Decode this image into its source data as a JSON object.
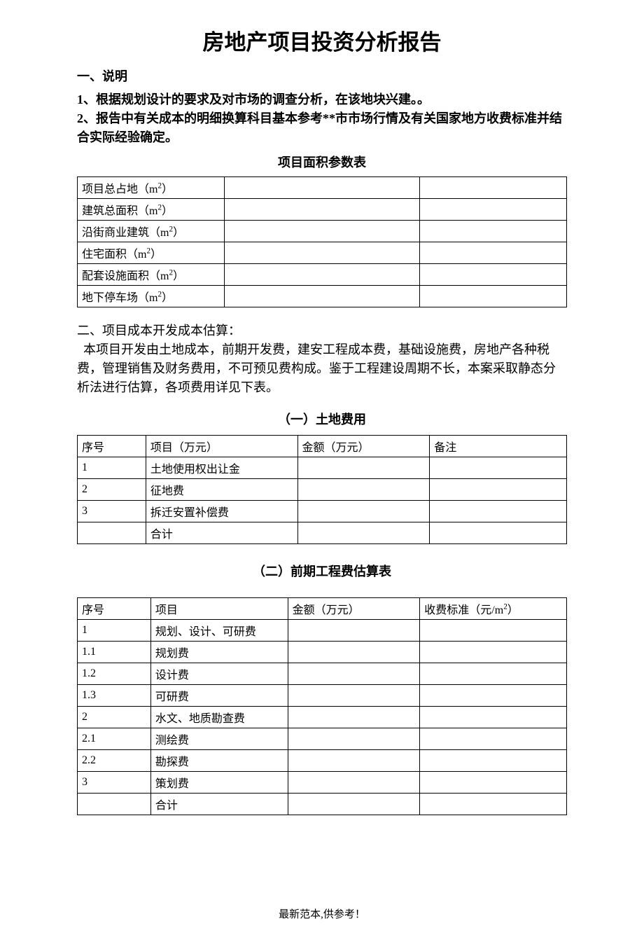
{
  "colors": {
    "text": "#000000",
    "background": "#ffffff",
    "border": "#000000"
  },
  "typography": {
    "title_fontsize": 31,
    "heading_fontsize": 18,
    "body_fontsize": 18,
    "table_fontsize": 16,
    "footer_fontsize": 15,
    "font_family": "SimSun"
  },
  "title": "房地产项目投资分析报告",
  "section1": {
    "heading": "一、说明",
    "para1": "1、根据规划设计的要求及对市场的调查分析，在该地块兴建。。",
    "para2": "2、报告中有关成本的明细换算科目基本参考**市市场行情及有关国家地方收费标准并结合实际经验确定。"
  },
  "table1": {
    "type": "table",
    "title": "项目面积参数表",
    "columns_count": 3,
    "col_widths_pct": [
      30,
      40,
      30
    ],
    "rows": [
      {
        "c1": "项目总占地（m²）",
        "c2": "",
        "c3": ""
      },
      {
        "c1": "建筑总面积（m²）",
        "c2": "",
        "c3": ""
      },
      {
        "c1": "沿街商业建筑（m²）",
        "c2": "",
        "c3": ""
      },
      {
        "c1": "住宅面积（m²）",
        "c2": "",
        "c3": ""
      },
      {
        "c1": "配套设施面积（m²）",
        "c2": "",
        "c3": ""
      },
      {
        "c1": "地下停车场（m²）",
        "c2": "",
        "c3": ""
      }
    ]
  },
  "section2": {
    "heading": "二、项目成本开发成本估算：",
    "para1": "  本项目开发由土地成本，前期开发费，建安工程成本费，基础设施费，房地产各种税费，管理销售及财务费用，不可预见费构成。鉴于工程建设周期不长，本案采取静态分析法进行估算，各项费用详见下表。"
  },
  "table2": {
    "type": "table",
    "title": "（一）土地费用",
    "col_widths_pct": [
      14,
      31,
      27,
      28
    ],
    "header": {
      "h1": "序号",
      "h2": "项目（万元）",
      "h3": "金额（万元）",
      "h4": "备注"
    },
    "rows": [
      {
        "c1": "1",
        "c2": "土地使用权出让金",
        "c3": "",
        "c4": ""
      },
      {
        "c1": "2",
        "c2": "征地费",
        "c3": "",
        "c4": ""
      },
      {
        "c1": "3",
        "c2": "拆迁安置补偿费",
        "c3": "",
        "c4": ""
      },
      {
        "c1": "",
        "c2": "合计",
        "c3": "",
        "c4": ""
      }
    ]
  },
  "table3": {
    "type": "table",
    "title": "（二）前期工程费估算表",
    "col_widths_pct": [
      15,
      28,
      27,
      30
    ],
    "header": {
      "h1": "序号",
      "h2": "项目",
      "h3": "金额（万元）",
      "h4": "收费标准（元/m²）"
    },
    "rows": [
      {
        "c1": "1",
        "c2": "规划、设计、可研费",
        "c3": "",
        "c4": ""
      },
      {
        "c1": "1.1",
        "c2": "规划费",
        "c3": "",
        "c4": ""
      },
      {
        "c1": "1.2",
        "c2": "设计费",
        "c3": "",
        "c4": ""
      },
      {
        "c1": "1.3",
        "c2": "可研费",
        "c3": "",
        "c4": ""
      },
      {
        "c1": "2",
        "c2": "水文、地质勘查费",
        "c3": "",
        "c4": ""
      },
      {
        "c1": "2.1",
        "c2": "测绘费",
        "c3": "",
        "c4": ""
      },
      {
        "c1": "2.2",
        "c2": "勘探费",
        "c3": "",
        "c4": ""
      },
      {
        "c1": "3",
        "c2": "策划费",
        "c3": "",
        "c4": ""
      },
      {
        "c1": "",
        "c2": "合计",
        "c3": "",
        "c4": ""
      }
    ]
  },
  "footer": "最新范本,供参考！"
}
